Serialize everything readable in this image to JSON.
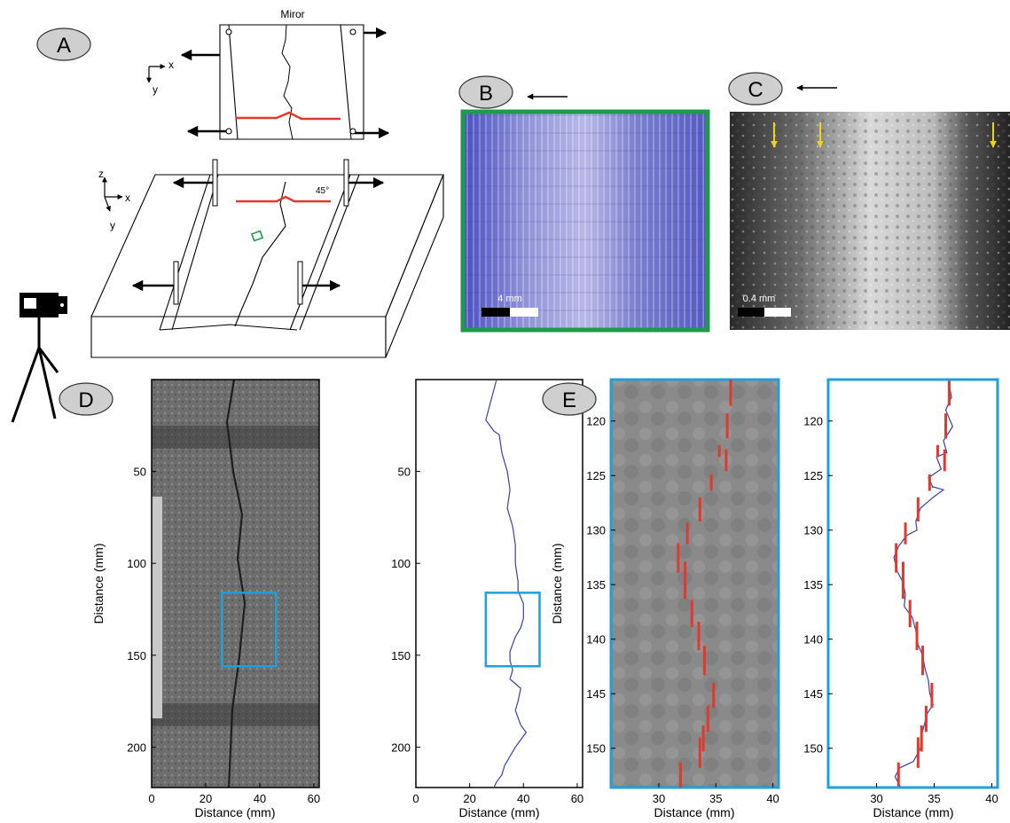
{
  "panels": {
    "A": {
      "label": "A",
      "top_title": "Miror",
      "axis_x": "x",
      "axis_y": "y",
      "axis_z": "z",
      "angle_label": "45°"
    },
    "B": {
      "label": "B",
      "scale_label": "4 mm",
      "frame_color": "#1f9a4a"
    },
    "C": {
      "label": "C",
      "scale_label": "0.4 mm",
      "arrow_color": "#f2d21b"
    },
    "D": {
      "label": "D",
      "ylabel": "Distance (mm)",
      "xlabel": "Distance (mm)",
      "xticks": [
        "0",
        "20",
        "40",
        "60"
      ],
      "yticks": [
        "50",
        "100",
        "150",
        "200"
      ],
      "box_color": "#1ea0dc"
    },
    "E": {
      "label": "E",
      "ylabel": "Distance (mm)",
      "xlabel": "Distance (mm)",
      "xticks": [
        "30",
        "35",
        "40"
      ],
      "yticks": [
        "120",
        "125",
        "130",
        "135",
        "140",
        "145",
        "150"
      ],
      "frame_color": "#1ea0dc",
      "segment_color": "#e03a2f",
      "trace_color": "#3b3fae"
    }
  },
  "chart_data": [
    {
      "type": "line",
      "title": "",
      "xlabel": "Distance (mm)",
      "ylabel": "Distance (mm)",
      "xlim": [
        0,
        62
      ],
      "ylim": [
        0,
        222
      ],
      "y_inverted": true,
      "series": [
        {
          "x": [
            30,
            26,
            29,
            31,
            32,
            34,
            35,
            34,
            36,
            37,
            37,
            38,
            38,
            40,
            40,
            39,
            37,
            35,
            35,
            36,
            35,
            39,
            38,
            37,
            39,
            41,
            39,
            37,
            35,
            33,
            32,
            30,
            29
          ],
          "y": [
            0,
            22,
            28,
            30,
            40,
            50,
            60,
            70,
            80,
            90,
            100,
            110,
            115,
            122,
            130,
            135,
            140,
            148,
            153,
            158,
            163,
            168,
            175,
            180,
            188,
            192,
            196,
            200,
            205,
            210,
            215,
            219,
            222
          ]
        }
      ],
      "highlight_box": {
        "x": [
          26,
          46
        ],
        "y": [
          116,
          156
        ]
      }
    },
    {
      "type": "line",
      "title": "",
      "xlabel": "Distance (mm)",
      "ylabel": "Distance (mm)",
      "xlim": [
        25.8,
        40.5
      ],
      "ylim": [
        116.2,
        153.6
      ],
      "y_inverted": true,
      "series": [
        {
          "x": [
            36.2,
            36.5,
            36.0,
            36.6,
            35.8,
            36.1,
            35.2,
            35.6,
            34.5,
            34.9,
            34.8,
            35.8,
            34.9,
            33.8,
            33.4,
            33.5,
            32.6,
            31.9,
            31.5,
            31.8,
            32.3,
            32.5,
            32.4,
            33.1,
            33.4,
            33.6,
            34.0,
            34.2,
            34.5,
            34.6,
            34.9,
            34.4,
            34.2,
            33.9,
            33.8,
            33.2,
            32.0,
            31.6,
            32.1
          ],
          "y": [
            116.2,
            117.8,
            119.0,
            120.5,
            121.8,
            122.9,
            123.3,
            124.4,
            125.2,
            126.1,
            126.0,
            126.3,
            127.0,
            128.0,
            129.2,
            130.0,
            130.5,
            131.5,
            132.5,
            133.8,
            134.8,
            135.9,
            137.0,
            138.0,
            139.2,
            140.5,
            141.5,
            142.7,
            143.8,
            144.9,
            146.0,
            146.8,
            147.6,
            148.8,
            150.0,
            151.2,
            151.8,
            152.6,
            153.6
          ]
        }
      ],
      "segments": [
        {
          "x": 36.3,
          "y": [
            116.2,
            118.6
          ]
        },
        {
          "x": 36.0,
          "y": [
            119.3,
            121.6
          ]
        },
        {
          "x": 35.3,
          "y": [
            122.2,
            123.3
          ]
        },
        {
          "x": 35.9,
          "y": [
            122.6,
            124.6
          ]
        },
        {
          "x": 34.6,
          "y": [
            124.9,
            126.4
          ]
        },
        {
          "x": 33.6,
          "y": [
            127.0,
            129.2
          ]
        },
        {
          "x": 32.5,
          "y": [
            129.3,
            131.3
          ]
        },
        {
          "x": 31.7,
          "y": [
            131.2,
            133.9
          ]
        },
        {
          "x": 32.3,
          "y": [
            132.9,
            136.3
          ]
        },
        {
          "x": 32.9,
          "y": [
            136.4,
            138.9
          ]
        },
        {
          "x": 33.5,
          "y": [
            138.4,
            141.0
          ]
        },
        {
          "x": 34.0,
          "y": [
            140.6,
            143.3
          ]
        },
        {
          "x": 34.8,
          "y": [
            144.0,
            146.3
          ]
        },
        {
          "x": 34.3,
          "y": [
            146.1,
            148.5
          ]
        },
        {
          "x": 33.9,
          "y": [
            147.9,
            150.3
          ]
        },
        {
          "x": 33.6,
          "y": [
            149.0,
            151.8
          ]
        },
        {
          "x": 31.9,
          "y": [
            151.3,
            153.6
          ]
        }
      ]
    }
  ]
}
